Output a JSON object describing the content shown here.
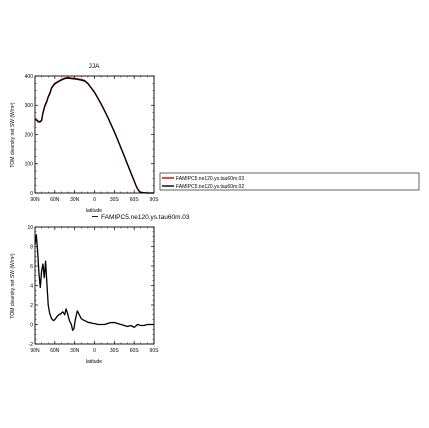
{
  "chart_data": [
    {
      "type": "line",
      "title": "JJA",
      "xlabel": "latitude",
      "ylabel": "TOM clearsky net SW (W/m²)",
      "x_ticklabels": [
        "90N",
        "60N",
        "30N",
        "0",
        "30S",
        "60S",
        "90S"
      ],
      "y_ticklabels": [
        "0",
        "100",
        "200",
        "300",
        "400"
      ],
      "xlim": [
        90,
        -90
      ],
      "ylim": [
        0,
        400
      ],
      "grid": false,
      "legend": {
        "placement": "right",
        "entries": [
          "FAMIPC5.ne120.ys.tau60m.03",
          "FAMIPC5.ne120.ys.tau60m.02"
        ]
      },
      "series": [
        {
          "name": "FAMIPC5.ne120.ys.tau60m.03",
          "color": "#cc0000",
          "x": [
            90,
            87,
            85,
            82,
            80,
            78,
            75,
            72,
            70,
            67,
            65,
            62,
            60,
            55,
            50,
            45,
            40,
            35,
            30,
            25,
            20,
            15,
            10,
            5,
            0,
            -5,
            -10,
            -15,
            -20,
            -25,
            -30,
            -35,
            -40,
            -45,
            -50,
            -55,
            -60,
            -62,
            -65,
            -68,
            -70,
            -75,
            -80,
            -85,
            -90
          ],
          "y": [
            255,
            250,
            245,
            245,
            250,
            275,
            300,
            315,
            330,
            345,
            360,
            370,
            375,
            382,
            388,
            393,
            395,
            393,
            392,
            390,
            388,
            385,
            375,
            360,
            345,
            325,
            305,
            283,
            260,
            235,
            210,
            183,
            155,
            127,
            98,
            70,
            42,
            30,
            15,
            6,
            3,
            1,
            0,
            0,
            0
          ]
        },
        {
          "name": "FAMIPC5.ne120.ys.tau60m.02",
          "color": "#000000",
          "x": [
            90,
            87,
            85,
            82,
            80,
            78,
            75,
            72,
            70,
            67,
            65,
            62,
            60,
            55,
            50,
            45,
            40,
            35,
            30,
            25,
            20,
            15,
            10,
            5,
            0,
            -5,
            -10,
            -15,
            -20,
            -25,
            -30,
            -35,
            -40,
            -45,
            -50,
            -55,
            -60,
            -62,
            -65,
            -68,
            -70,
            -75,
            -80,
            -85,
            -90
          ],
          "y": [
            252,
            248,
            243,
            243,
            248,
            273,
            298,
            313,
            328,
            343,
            358,
            368,
            373,
            380,
            386,
            391,
            393,
            391,
            390,
            388,
            386,
            383,
            374,
            359,
            344,
            324,
            304,
            282,
            259,
            234,
            209,
            182,
            154,
            126,
            97,
            69,
            41,
            29,
            14,
            5,
            2,
            1,
            0,
            0,
            0
          ]
        }
      ]
    },
    {
      "type": "line",
      "title": "",
      "xlabel": "latitude",
      "ylabel": "TOM clearsky net SW (W/m²)",
      "x_ticklabels": [
        "90N",
        "60N",
        "30N",
        "0",
        "30S",
        "60S",
        "90S"
      ],
      "y_ticklabels": [
        "-2",
        "0",
        "2",
        "4",
        "6",
        "8",
        "10"
      ],
      "xlim": [
        90,
        -90
      ],
      "ylim": [
        -2,
        10
      ],
      "grid": false,
      "legend": {
        "placement": "top-right",
        "entries": [
          "FAMIPC5.ne120.ys.tau60m.03"
        ]
      },
      "series": [
        {
          "name": "FAMIPC5.ne120.ys.tau60m.03",
          "color": "#000000",
          "x": [
            90,
            88,
            86,
            84,
            82,
            80,
            78,
            76,
            74,
            72,
            70,
            68,
            65,
            62,
            60,
            57,
            54,
            51,
            48,
            45,
            43,
            41,
            38,
            35,
            33,
            31,
            29,
            26,
            23,
            20,
            18,
            15,
            12,
            9,
            6,
            3,
            0,
            -5,
            -10,
            -15,
            -20,
            -25,
            -30,
            -35,
            -40,
            -45,
            -50,
            -55,
            -60,
            -65,
            -70,
            -75,
            -80,
            -85,
            -90
          ],
          "y": [
            8.2,
            9.2,
            7.5,
            5.2,
            3.8,
            5.5,
            6.2,
            4.8,
            6.5,
            4.2,
            2.0,
            1.2,
            0.6,
            0.4,
            0.5,
            0.8,
            1.0,
            1.1,
            1.3,
            1.0,
            1.6,
            1.2,
            0.4,
            0.0,
            -0.6,
            -0.4,
            0.5,
            1.4,
            1.0,
            0.6,
            0.5,
            0.4,
            0.3,
            0.2,
            0.2,
            0.1,
            0.1,
            0.0,
            0.0,
            0.0,
            0.1,
            0.2,
            0.2,
            0.1,
            0.0,
            -0.1,
            -0.2,
            -0.1,
            -0.3,
            0.0,
            -0.1,
            -0.1,
            0.0,
            0.0,
            0.0
          ]
        }
      ]
    }
  ]
}
